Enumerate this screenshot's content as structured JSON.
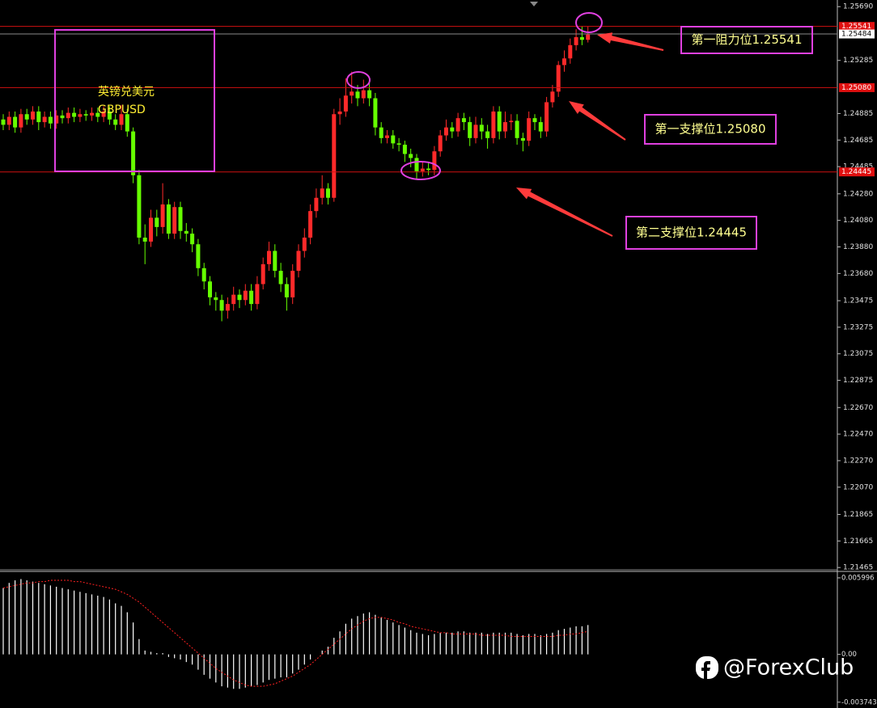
{
  "chart_data": {
    "type": "candlestick",
    "symbol_name": "英镑兑美元",
    "symbol": "GBPUSD",
    "up_color": "#ff2a2a",
    "down_color": "#66ff00",
    "ohlc": [
      [
        1.2484,
        1.2488,
        1.2476,
        1.248
      ],
      [
        1.248,
        1.249,
        1.2476,
        1.2486
      ],
      [
        1.2486,
        1.249,
        1.2474,
        1.2478
      ],
      [
        1.2478,
        1.2492,
        1.2474,
        1.2488
      ],
      [
        1.2488,
        1.2492,
        1.248,
        1.2484
      ],
      [
        1.2484,
        1.2494,
        1.248,
        1.249
      ],
      [
        1.249,
        1.2494,
        1.2476,
        1.2482
      ],
      [
        1.2482,
        1.249,
        1.2478,
        1.2486
      ],
      [
        1.2486,
        1.249,
        1.2477,
        1.2481
      ],
      [
        1.2481,
        1.2491,
        1.2477,
        1.2487
      ],
      [
        1.2487,
        1.2491,
        1.2481,
        1.2485
      ],
      [
        1.2485,
        1.2493,
        1.2481,
        1.2489
      ],
      [
        1.2489,
        1.2493,
        1.2482,
        1.2486
      ],
      [
        1.2486,
        1.2492,
        1.2482,
        1.2488
      ],
      [
        1.2488,
        1.2491,
        1.2483,
        1.2487
      ],
      [
        1.2487,
        1.2493,
        1.2483,
        1.2489
      ],
      [
        1.2489,
        1.2493,
        1.2482,
        1.2486
      ],
      [
        1.2486,
        1.2494,
        1.2482,
        1.249
      ],
      [
        1.249,
        1.2494,
        1.248,
        1.2484
      ],
      [
        1.2484,
        1.2488,
        1.2476,
        1.248
      ],
      [
        1.248,
        1.2495,
        1.2476,
        1.2488
      ],
      [
        1.2488,
        1.2492,
        1.2471,
        1.2475
      ],
      [
        1.2475,
        1.2478,
        1.2436,
        1.2442
      ],
      [
        1.2442,
        1.2446,
        1.239,
        1.2395
      ],
      [
        1.2395,
        1.2405,
        1.2375,
        1.2392
      ],
      [
        1.2392,
        1.2416,
        1.2388,
        1.241
      ],
      [
        1.241,
        1.2416,
        1.2396,
        1.2403
      ],
      [
        1.2403,
        1.2436,
        1.2398,
        1.242
      ],
      [
        1.242,
        1.2424,
        1.2394,
        1.2398
      ],
      [
        1.2398,
        1.2422,
        1.2394,
        1.2418
      ],
      [
        1.2418,
        1.2422,
        1.2394,
        1.24
      ],
      [
        1.24,
        1.2406,
        1.2392,
        1.2398
      ],
      [
        1.2398,
        1.2402,
        1.2384,
        1.239
      ],
      [
        1.239,
        1.2394,
        1.2366,
        1.2372
      ],
      [
        1.2372,
        1.2376,
        1.2356,
        1.2362
      ],
      [
        1.2362,
        1.2366,
        1.2344,
        1.235
      ],
      [
        1.235,
        1.2354,
        1.234,
        1.2348
      ],
      [
        1.2348,
        1.2352,
        1.2332,
        1.234
      ],
      [
        1.234,
        1.235,
        1.2334,
        1.2345
      ],
      [
        1.2345,
        1.2358,
        1.234,
        1.2352
      ],
      [
        1.2352,
        1.2356,
        1.2342,
        1.2348
      ],
      [
        1.2348,
        1.236,
        1.2344,
        1.2355
      ],
      [
        1.2355,
        1.236,
        1.234,
        1.2345
      ],
      [
        1.2345,
        1.2366,
        1.2341,
        1.236
      ],
      [
        1.236,
        1.238,
        1.2356,
        1.2375
      ],
      [
        1.2375,
        1.2392,
        1.237,
        1.2385
      ],
      [
        1.2385,
        1.239,
        1.2365,
        1.237
      ],
      [
        1.237,
        1.2376,
        1.2354,
        1.236
      ],
      [
        1.236,
        1.2365,
        1.234,
        1.235
      ],
      [
        1.235,
        1.2375,
        1.2345,
        1.237
      ],
      [
        1.237,
        1.239,
        1.2365,
        1.2385
      ],
      [
        1.2385,
        1.2402,
        1.238,
        1.2395
      ],
      [
        1.2395,
        1.242,
        1.239,
        1.2415
      ],
      [
        1.2415,
        1.2432,
        1.241,
        1.2425
      ],
      [
        1.2425,
        1.2442,
        1.242,
        1.2432
      ],
      [
        1.2432,
        1.2436,
        1.242,
        1.2425
      ],
      [
        1.2425,
        1.2492,
        1.2422,
        1.2488
      ],
      [
        1.2488,
        1.25,
        1.248,
        1.249
      ],
      [
        1.249,
        1.2515,
        1.2486,
        1.2502
      ],
      [
        1.2502,
        1.252,
        1.2496,
        1.2505
      ],
      [
        1.2505,
        1.251,
        1.2494,
        1.25
      ],
      [
        1.25,
        1.2514,
        1.2496,
        1.2506
      ],
      [
        1.2506,
        1.2512,
        1.2494,
        1.25
      ],
      [
        1.25,
        1.2504,
        1.2472,
        1.2478
      ],
      [
        1.2478,
        1.2482,
        1.2466,
        1.247
      ],
      [
        1.247,
        1.2476,
        1.2466,
        1.2472
      ],
      [
        1.2472,
        1.2476,
        1.2462,
        1.2466
      ],
      [
        1.2466,
        1.247,
        1.246,
        1.2465
      ],
      [
        1.2465,
        1.2468,
        1.2452,
        1.2458
      ],
      [
        1.2458,
        1.2462,
        1.2448,
        1.2455
      ],
      [
        1.2455,
        1.2458,
        1.2439,
        1.2445
      ],
      [
        1.2445,
        1.2452,
        1.2441,
        1.2447
      ],
      [
        1.2447,
        1.2452,
        1.2442,
        1.2446
      ],
      [
        1.2446,
        1.2464,
        1.2442,
        1.246
      ],
      [
        1.246,
        1.2476,
        1.2456,
        1.2472
      ],
      [
        1.2472,
        1.2484,
        1.2468,
        1.2478
      ],
      [
        1.2478,
        1.2482,
        1.247,
        1.2475
      ],
      [
        1.2475,
        1.2489,
        1.2471,
        1.2485
      ],
      [
        1.2485,
        1.2489,
        1.2476,
        1.2482
      ],
      [
        1.2482,
        1.2486,
        1.2464,
        1.247
      ],
      [
        1.247,
        1.2486,
        1.2466,
        1.248
      ],
      [
        1.248,
        1.2485,
        1.2469,
        1.2475
      ],
      [
        1.2475,
        1.248,
        1.2462,
        1.247
      ],
      [
        1.247,
        1.2494,
        1.2466,
        1.249
      ],
      [
        1.249,
        1.2494,
        1.2469,
        1.2475
      ],
      [
        1.2475,
        1.249,
        1.247,
        1.2482
      ],
      [
        1.2482,
        1.2488,
        1.2476,
        1.2483
      ],
      [
        1.2483,
        1.2488,
        1.2465,
        1.247
      ],
      [
        1.247,
        1.2474,
        1.246,
        1.2468
      ],
      [
        1.2468,
        1.249,
        1.2464,
        1.2485
      ],
      [
        1.2485,
        1.2488,
        1.2476,
        1.2482
      ],
      [
        1.2482,
        1.2486,
        1.247,
        1.2475
      ],
      [
        1.2475,
        1.2501,
        1.2471,
        1.2497
      ],
      [
        1.2497,
        1.251,
        1.2493,
        1.2505
      ],
      [
        1.2505,
        1.2528,
        1.2501,
        1.2525
      ],
      [
        1.2525,
        1.2536,
        1.252,
        1.253
      ],
      [
        1.253,
        1.2545,
        1.2526,
        1.254
      ],
      [
        1.254,
        1.2552,
        1.2536,
        1.2546
      ],
      [
        1.2546,
        1.2554,
        1.254,
        1.2544
      ],
      [
        1.2544,
        1.2554,
        1.2542,
        1.2548
      ]
    ],
    "ylim": [
      1.2146,
      1.2574
    ],
    "yticks": [
      {
        "value": 1.2569,
        "label": "1.25690"
      },
      1.25285,
      1.24885,
      1.24685,
      1.24485,
      {
        "value": 1.2428,
        "label": "1.24280"
      },
      {
        "value": 1.2408,
        "label": "1.24080"
      },
      {
        "value": 1.2388,
        "label": "1.23880"
      },
      {
        "value": 1.2368,
        "label": "1.23680"
      },
      1.23475,
      1.23275,
      1.23075,
      1.22875,
      {
        "value": 1.2267,
        "label": "1.22670"
      },
      {
        "value": 1.2247,
        "label": "1.22470"
      },
      {
        "value": 1.2227,
        "label": "1.22270"
      },
      {
        "value": 1.2207,
        "label": "1.22070"
      },
      1.21865,
      1.21665,
      1.21465
    ],
    "levels": [
      {
        "value": 1.25541,
        "label": "1.25541",
        "color": "#d01010",
        "label_fill": "#e01010",
        "label_color": "#ffffff"
      },
      {
        "value": 1.25484,
        "label": "1.25484",
        "color": "#8a8a8a",
        "label_fill": "#ffffff",
        "label_color": "#000000"
      },
      {
        "value": 1.2508,
        "label": "1.25080",
        "color": "#d01010",
        "label_fill": "#e01010",
        "label_color": "#ffffff"
      },
      {
        "value": 1.24445,
        "label": "1.24445",
        "color": "#d01010",
        "label_fill": "#e01010",
        "label_color": "#ffffff"
      }
    ],
    "annotations": [
      {
        "text": "第一阻力位1.25541"
      },
      {
        "text": "第一支撑位1.25080"
      },
      {
        "text": "第二支撑位1.24445"
      }
    ],
    "indicator": {
      "type": "histogram",
      "histogram_color": "#ffffff",
      "signal_color": "#ff2020",
      "histogram": [
        0.0052,
        0.0056,
        0.0058,
        0.0059,
        0.0058,
        0.0057,
        0.0056,
        0.0055,
        0.0054,
        0.0053,
        0.0052,
        0.0051,
        0.005,
        0.0049,
        0.0048,
        0.0047,
        0.0046,
        0.0045,
        0.0043,
        0.004,
        0.0038,
        0.0033,
        0.0025,
        0.0012,
        0.0003,
        0.0002,
        0.0001,
        0.0001,
        -0.0002,
        -0.0003,
        -0.0004,
        -0.0006,
        -0.0008,
        -0.0012,
        -0.0016,
        -0.0019,
        -0.0022,
        -0.0025,
        -0.0026,
        -0.0027,
        -0.0027,
        -0.0026,
        -0.0025,
        -0.0024,
        -0.0022,
        -0.002,
        -0.0019,
        -0.0018,
        -0.0018,
        -0.0015,
        -0.0012,
        -0.0008,
        -0.0004,
        0.0,
        0.0003,
        0.0006,
        0.0013,
        0.0018,
        0.0024,
        0.0028,
        0.003,
        0.0032,
        0.0033,
        0.0031,
        0.0029,
        0.0027,
        0.0025,
        0.0023,
        0.0021,
        0.0019,
        0.0017,
        0.0016,
        0.0015,
        0.0016,
        0.0017,
        0.0017,
        0.0017,
        0.0018,
        0.0018,
        0.0017,
        0.0017,
        0.0017,
        0.0016,
        0.0017,
        0.0017,
        0.0017,
        0.0017,
        0.0016,
        0.0015,
        0.0016,
        0.0016,
        0.0015,
        0.0016,
        0.0017,
        0.0019,
        0.002,
        0.0021,
        0.0022,
        0.0022,
        0.0023
      ],
      "signal": [
        0.0052,
        0.0053,
        0.0054,
        0.0055,
        0.0056,
        0.0056,
        0.0057,
        0.0057,
        0.0058,
        0.0058,
        0.0058,
        0.0058,
        0.0057,
        0.0057,
        0.0056,
        0.0055,
        0.0054,
        0.0053,
        0.0052,
        0.0051,
        0.0049,
        0.0047,
        0.0044,
        0.0041,
        0.0037,
        0.0033,
        0.0029,
        0.0025,
        0.0021,
        0.0017,
        0.0013,
        0.0009,
        0.0005,
        0.0001,
        -0.0003,
        -0.0007,
        -0.0011,
        -0.0014,
        -0.0017,
        -0.002,
        -0.0022,
        -0.0024,
        -0.0025,
        -0.0025,
        -0.0025,
        -0.0024,
        -0.0023,
        -0.0021,
        -0.0019,
        -0.0017,
        -0.0014,
        -0.0011,
        -0.0008,
        -0.0004,
        0.0,
        0.0004,
        0.0008,
        0.0012,
        0.0016,
        0.002,
        0.0023,
        0.0026,
        0.0028,
        0.0029,
        0.0029,
        0.0028,
        0.0027,
        0.0025,
        0.0024,
        0.0022,
        0.0021,
        0.002,
        0.0019,
        0.0018,
        0.0017,
        0.0017,
        0.0016,
        0.0016,
        0.0016,
        0.0016,
        0.0016,
        0.0015,
        0.0015,
        0.0015,
        0.0015,
        0.0015,
        0.0014,
        0.0014,
        0.0014,
        0.0014,
        0.0014,
        0.0014,
        0.0014,
        0.0014,
        0.0015,
        0.0015,
        0.0016,
        0.0016,
        0.0017,
        0.0018
      ],
      "ylim": [
        -0.0042,
        0.0065
      ],
      "yticks": [
        0.005996,
        {
          "value": 0,
          "label": "0.00"
        },
        -0.003743
      ]
    },
    "watermark": "@ForexClub"
  }
}
